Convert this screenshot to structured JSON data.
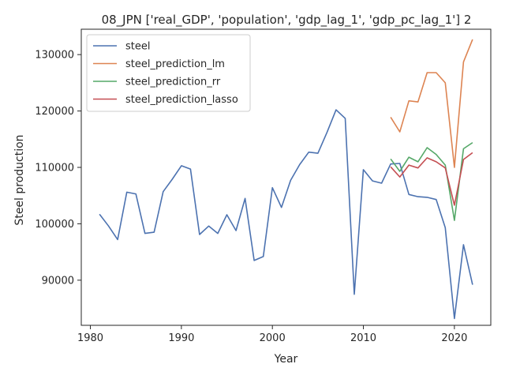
{
  "chart_data": {
    "type": "line",
    "title": "08_JPN ['real_GDP', 'population', 'gdp_lag_1', 'gdp_pc_lag_1'] 2",
    "xlabel": "Year",
    "ylabel": "Steel production",
    "xlim": [
      1979,
      2024
    ],
    "ylim": [
      82000,
      134500
    ],
    "xticks": [
      1980,
      1990,
      2000,
      2010,
      2020
    ],
    "yticks": [
      90000,
      100000,
      110000,
      120000,
      130000
    ],
    "grid": false,
    "legend_position": "top-left",
    "series": [
      {
        "name": "steel",
        "color": "#4c72b0",
        "x": [
          1981,
          1982,
          1983,
          1984,
          1985,
          1986,
          1987,
          1988,
          1989,
          1990,
          1991,
          1992,
          1993,
          1994,
          1995,
          1996,
          1997,
          1998,
          1999,
          2000,
          2001,
          2002,
          2003,
          2004,
          2005,
          2006,
          2007,
          2008,
          2009,
          2010,
          2011,
          2012,
          2013,
          2014,
          2015,
          2016,
          2017,
          2018,
          2019,
          2020,
          2021,
          2022
        ],
        "values": [
          101700,
          99600,
          97200,
          105600,
          105300,
          98300,
          98500,
          105700,
          107900,
          110300,
          109700,
          98100,
          99600,
          98300,
          101600,
          98800,
          104500,
          93500,
          94200,
          106400,
          102900,
          107700,
          110500,
          112700,
          112500,
          116200,
          120200,
          118700,
          87500,
          109600,
          107600,
          107200,
          110600,
          110700,
          105200,
          104800,
          104700,
          104300,
          99300,
          83200,
          96300,
          89200
        ]
      },
      {
        "name": "steel_prediction_lm",
        "color": "#dd8452",
        "x": [
          2013,
          2014,
          2015,
          2016,
          2017,
          2018,
          2019,
          2020,
          2021,
          2022
        ],
        "values": [
          118900,
          116300,
          121800,
          121600,
          126800,
          126800,
          125000,
          110000,
          128700,
          132700
        ]
      },
      {
        "name": "steel_prediction_rr",
        "color": "#55a868",
        "x": [
          2013,
          2014,
          2015,
          2016,
          2017,
          2018,
          2019,
          2020,
          2021,
          2022
        ],
        "values": [
          111500,
          109300,
          111800,
          111000,
          113500,
          112300,
          110400,
          100600,
          113300,
          114400
        ]
      },
      {
        "name": "steel_prediction_lasso",
        "color": "#c44e52",
        "x": [
          2013,
          2014,
          2015,
          2016,
          2017,
          2018,
          2019,
          2020,
          2021,
          2022
        ],
        "values": [
          110100,
          108300,
          110400,
          109900,
          111700,
          111000,
          109900,
          103300,
          111400,
          112600
        ]
      }
    ]
  }
}
